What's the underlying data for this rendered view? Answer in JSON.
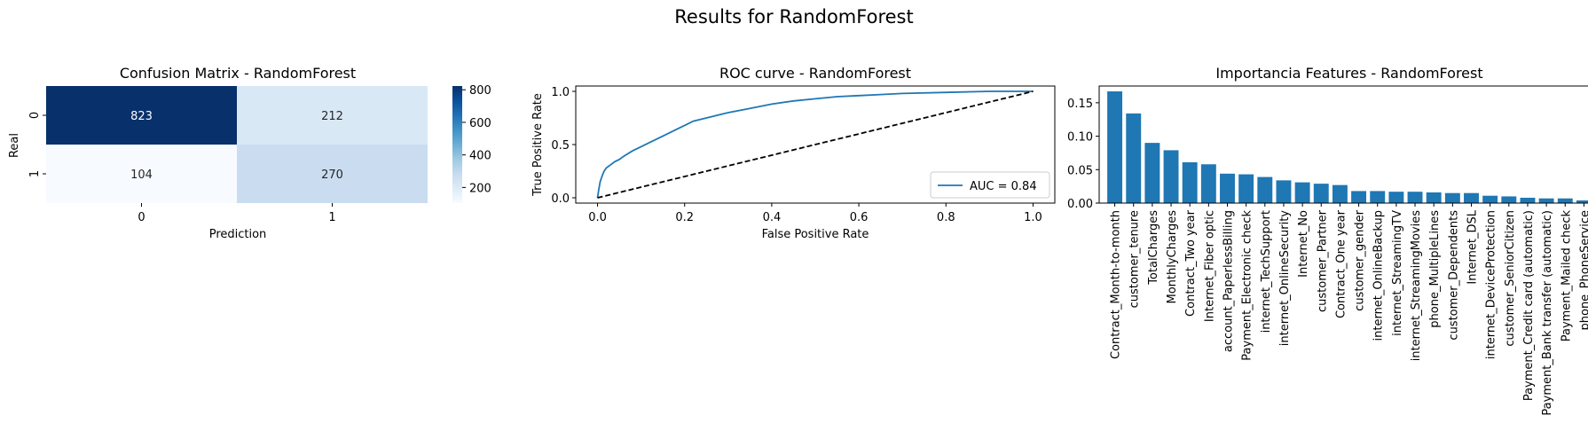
{
  "suptitle": "Results for RandomForest",
  "chart_data": [
    {
      "type": "heatmap",
      "title": "Confusion Matrix - RandomForest",
      "xlabel": "Prediction",
      "ylabel": "Real",
      "x_ticks": [
        "0",
        "1"
      ],
      "y_ticks": [
        "0",
        "1"
      ],
      "matrix": [
        [
          823,
          212
        ],
        [
          104,
          270
        ]
      ],
      "cell_labels": [
        [
          "823",
          "212"
        ],
        [
          "104",
          "270"
        ]
      ],
      "colormap": "Blues",
      "colorbar_ticks": [
        "200",
        "400",
        "600",
        "800"
      ],
      "colorbar_values": [
        200,
        400,
        600,
        800
      ],
      "vmin": 104,
      "vmax": 823
    },
    {
      "type": "line",
      "title": "ROC curve - RandomForest",
      "xlabel": "False Positive Rate",
      "ylabel": "True Positive Rate",
      "xlim": [
        -0.05,
        1.05
      ],
      "ylim": [
        -0.05,
        1.05
      ],
      "x_ticks": [
        "0.0",
        "0.2",
        "0.4",
        "0.6",
        "0.8",
        "1.0"
      ],
      "y_ticks": [
        "0.0",
        "0.5",
        "1.0"
      ],
      "x_tick_values": [
        0,
        0.2,
        0.4,
        0.6,
        0.8,
        1.0
      ],
      "y_tick_values": [
        0,
        0.5,
        1.0
      ],
      "legend_position": "lower right",
      "series": [
        {
          "name": "AUC = 0.84",
          "color": "#1f77b4",
          "style": "solid",
          "x": [
            0,
            0.003,
            0.006,
            0.01,
            0.015,
            0.02,
            0.03,
            0.04,
            0.05,
            0.06,
            0.08,
            0.1,
            0.12,
            0.15,
            0.18,
            0.2,
            0.22,
            0.25,
            0.28,
            0.3,
            0.35,
            0.4,
            0.45,
            0.5,
            0.55,
            0.6,
            0.65,
            0.7,
            0.8,
            0.9,
            1.0
          ],
          "y": [
            0,
            0.08,
            0.15,
            0.2,
            0.25,
            0.28,
            0.31,
            0.34,
            0.36,
            0.39,
            0.44,
            0.48,
            0.52,
            0.58,
            0.64,
            0.68,
            0.72,
            0.75,
            0.78,
            0.8,
            0.84,
            0.88,
            0.91,
            0.93,
            0.95,
            0.96,
            0.97,
            0.98,
            0.99,
            1.0,
            1.0
          ]
        },
        {
          "name": "",
          "color": "#000000",
          "style": "dashed",
          "x": [
            0,
            1
          ],
          "y": [
            0,
            1
          ]
        }
      ]
    },
    {
      "type": "bar",
      "title": "Importancia Features - RandomForest",
      "ylim": [
        0,
        0.175
      ],
      "y_ticks": [
        "0.00",
        "0.05",
        "0.10",
        "0.15"
      ],
      "y_tick_values": [
        0,
        0.05,
        0.1,
        0.15
      ],
      "color": "#1f77b4",
      "categories": [
        "Contract_Month-to-month",
        "customer_tenure",
        "TotalCharges",
        "MonthlyCharges",
        "Contract_Two year",
        "Internet_Fiber optic",
        "account_PaperlessBilling",
        "Payment_Electronic check",
        "internet_TechSupport",
        "internet_OnlineSecurity",
        "Internet_No",
        "customer_Partner",
        "Contract_One year",
        "customer_gender",
        "internet_OnlineBackup",
        "internet_StreamingTV",
        "internet_StreamingMovies",
        "phone_MultipleLines",
        "customer_Dependents",
        "Internet_DSL",
        "internet_DeviceProtection",
        "customer_SeniorCitizen",
        "Payment_Credit card (automatic)",
        "Payment_Bank transfer (automatic)",
        "Payment_Mailed check",
        "phone_PhoneService"
      ],
      "values": [
        0.167,
        0.134,
        0.09,
        0.079,
        0.061,
        0.058,
        0.044,
        0.043,
        0.039,
        0.034,
        0.031,
        0.029,
        0.027,
        0.018,
        0.018,
        0.017,
        0.017,
        0.016,
        0.015,
        0.015,
        0.011,
        0.01,
        0.008,
        0.007,
        0.007,
        0.004
      ]
    }
  ]
}
